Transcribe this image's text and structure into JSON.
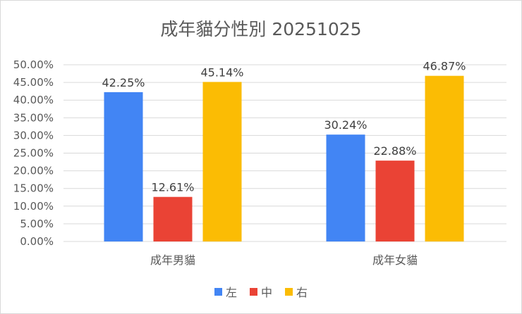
{
  "chart_data": {
    "type": "bar",
    "title": "成年貓分性別 20251025",
    "categories": [
      "成年男貓",
      "成年女貓"
    ],
    "series": [
      {
        "name": "左",
        "color": "#4285F4",
        "values": [
          42.25,
          30.24
        ],
        "labels": [
          "42.25%",
          "30.24%"
        ]
      },
      {
        "name": "中",
        "color": "#EA4335",
        "values": [
          12.61,
          22.88
        ],
        "labels": [
          "12.61%",
          "22.88%"
        ]
      },
      {
        "name": "右",
        "color": "#FBBC04",
        "values": [
          45.14,
          46.87
        ],
        "labels": [
          "45.14%",
          "46.87%"
        ]
      }
    ],
    "ylim": [
      0,
      50
    ],
    "yticks": [
      "0.00%",
      "5.00%",
      "10.00%",
      "15.00%",
      "20.00%",
      "25.00%",
      "30.00%",
      "35.00%",
      "40.00%",
      "45.00%",
      "50.00%"
    ],
    "grid": true,
    "legend_position": "bottom",
    "gridline_color": "#d9d9d9"
  }
}
